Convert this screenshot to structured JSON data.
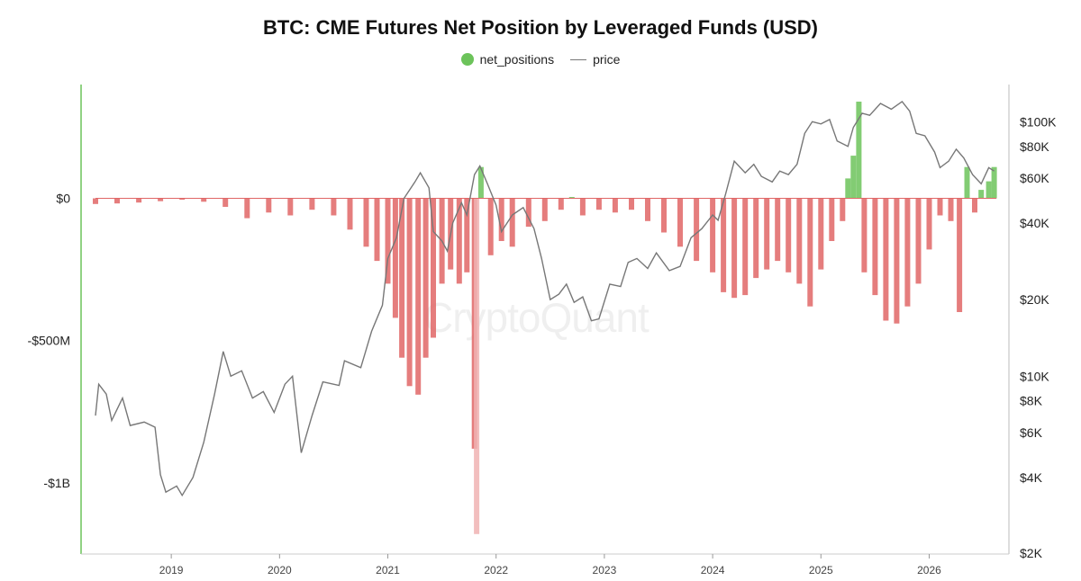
{
  "chart_data": {
    "type": "bar+line",
    "title": "BTC: CME Futures Net Position by Leveraged Funds (USD)",
    "legend": {
      "placement": "top-center",
      "entries": [
        {
          "name": "net_positions",
          "marker": "dot",
          "color": "#6cc35a"
        },
        {
          "name": "price",
          "marker": "line",
          "color": "#777777"
        }
      ]
    },
    "x_axis": {
      "range": [
        "2018-04",
        "2026-08"
      ],
      "ticks": [
        "2019",
        "2020",
        "2021",
        "2022",
        "2023",
        "2024",
        "2025",
        "2026"
      ]
    },
    "y_left": {
      "range": [
        -1250000000,
        400000000
      ],
      "ticks": [
        {
          "value": 0,
          "label": "$0"
        },
        {
          "value": -500000000,
          "label": "-$500M"
        },
        {
          "value": -1000000000,
          "label": "-$1B"
        }
      ]
    },
    "y_right": {
      "scale": "log",
      "range": [
        2000,
        140000
      ],
      "ticks": [
        {
          "value": 100000,
          "label": "$100K"
        },
        {
          "value": 80000,
          "label": "$80K"
        },
        {
          "value": 60000,
          "label": "$60K"
        },
        {
          "value": 40000,
          "label": "$40K"
        },
        {
          "value": 20000,
          "label": "$20K"
        },
        {
          "value": 10000,
          "label": "$10K"
        },
        {
          "value": 8000,
          "label": "$8K"
        },
        {
          "value": 6000,
          "label": "$6K"
        },
        {
          "value": 4000,
          "label": "$4K"
        },
        {
          "value": 2000,
          "label": "$2K"
        }
      ]
    },
    "colors": {
      "positive": "#6cc35a",
      "negative": "#e06666",
      "negative_light": "#f0b3b3",
      "price_line": "#777777",
      "axis": "#6cc35a"
    },
    "net_positions": {
      "unit": "USD",
      "series": [
        {
          "t": 2018.3,
          "v": -20000000
        },
        {
          "t": 2018.5,
          "v": -18000000
        },
        {
          "t": 2018.7,
          "v": -15000000
        },
        {
          "t": 2018.9,
          "v": -10000000
        },
        {
          "t": 2019.1,
          "v": -5000000
        },
        {
          "t": 2019.3,
          "v": -12000000
        },
        {
          "t": 2019.5,
          "v": -30000000
        },
        {
          "t": 2019.7,
          "v": -70000000
        },
        {
          "t": 2019.9,
          "v": -50000000
        },
        {
          "t": 2020.1,
          "v": -60000000
        },
        {
          "t": 2020.3,
          "v": -40000000
        },
        {
          "t": 2020.5,
          "v": -60000000
        },
        {
          "t": 2020.65,
          "v": -110000000
        },
        {
          "t": 2020.8,
          "v": -170000000
        },
        {
          "t": 2020.9,
          "v": -220000000
        },
        {
          "t": 2021.0,
          "v": -300000000
        },
        {
          "t": 2021.07,
          "v": -420000000
        },
        {
          "t": 2021.13,
          "v": -560000000
        },
        {
          "t": 2021.2,
          "v": -660000000
        },
        {
          "t": 2021.28,
          "v": -690000000
        },
        {
          "t": 2021.35,
          "v": -560000000
        },
        {
          "t": 2021.42,
          "v": -490000000
        },
        {
          "t": 2021.5,
          "v": -300000000
        },
        {
          "t": 2021.58,
          "v": -250000000
        },
        {
          "t": 2021.66,
          "v": -300000000
        },
        {
          "t": 2021.73,
          "v": -260000000
        },
        {
          "t": 2021.8,
          "v": -880000000
        },
        {
          "t": 2021.82,
          "v": -1180000000
        },
        {
          "t": 2021.86,
          "v": 110000000
        },
        {
          "t": 2021.95,
          "v": -200000000
        },
        {
          "t": 2022.05,
          "v": -150000000
        },
        {
          "t": 2022.15,
          "v": -170000000
        },
        {
          "t": 2022.3,
          "v": -100000000
        },
        {
          "t": 2022.45,
          "v": -80000000
        },
        {
          "t": 2022.6,
          "v": -40000000
        },
        {
          "t": 2022.7,
          "v": 5000000
        },
        {
          "t": 2022.8,
          "v": -60000000
        },
        {
          "t": 2022.95,
          "v": -40000000
        },
        {
          "t": 2023.1,
          "v": -50000000
        },
        {
          "t": 2023.25,
          "v": -40000000
        },
        {
          "t": 2023.4,
          "v": -80000000
        },
        {
          "t": 2023.55,
          "v": -120000000
        },
        {
          "t": 2023.7,
          "v": -170000000
        },
        {
          "t": 2023.85,
          "v": -220000000
        },
        {
          "t": 2024.0,
          "v": -260000000
        },
        {
          "t": 2024.1,
          "v": -330000000
        },
        {
          "t": 2024.2,
          "v": -350000000
        },
        {
          "t": 2024.3,
          "v": -340000000
        },
        {
          "t": 2024.4,
          "v": -280000000
        },
        {
          "t": 2024.5,
          "v": -250000000
        },
        {
          "t": 2024.6,
          "v": -220000000
        },
        {
          "t": 2024.7,
          "v": -260000000
        },
        {
          "t": 2024.8,
          "v": -300000000
        },
        {
          "t": 2024.9,
          "v": -380000000
        },
        {
          "t": 2025.0,
          "v": -250000000
        },
        {
          "t": 2025.1,
          "v": -150000000
        },
        {
          "t": 2025.2,
          "v": -80000000
        },
        {
          "t": 2025.25,
          "v": 70000000
        },
        {
          "t": 2025.3,
          "v": 150000000
        },
        {
          "t": 2025.35,
          "v": 340000000
        },
        {
          "t": 2025.4,
          "v": -260000000
        },
        {
          "t": 2025.5,
          "v": -340000000
        },
        {
          "t": 2025.6,
          "v": -430000000
        },
        {
          "t": 2025.7,
          "v": -440000000
        },
        {
          "t": 2025.8,
          "v": -380000000
        },
        {
          "t": 2025.9,
          "v": -300000000
        },
        {
          "t": 2026.0,
          "v": -180000000
        },
        {
          "t": 2026.1,
          "v": -60000000
        },
        {
          "t": 2026.2,
          "v": -80000000
        },
        {
          "t": 2026.28,
          "v": -400000000
        },
        {
          "t": 2026.35,
          "v": 110000000
        },
        {
          "t": 2026.42,
          "v": -50000000
        },
        {
          "t": 2026.48,
          "v": 30000000
        },
        {
          "t": 2026.55,
          "v": 60000000
        },
        {
          "t": 2026.6,
          "v": 110000000
        }
      ]
    },
    "price": {
      "unit": "USD",
      "series": [
        {
          "t": 2018.3,
          "v": 7000
        },
        {
          "t": 2018.33,
          "v": 9300
        },
        {
          "t": 2018.4,
          "v": 8500
        },
        {
          "t": 2018.45,
          "v": 6700
        },
        {
          "t": 2018.55,
          "v": 8200
        },
        {
          "t": 2018.62,
          "v": 6400
        },
        {
          "t": 2018.75,
          "v": 6600
        },
        {
          "t": 2018.85,
          "v": 6300
        },
        {
          "t": 2018.9,
          "v": 4100
        },
        {
          "t": 2018.95,
          "v": 3500
        },
        {
          "t": 2019.05,
          "v": 3700
        },
        {
          "t": 2019.1,
          "v": 3400
        },
        {
          "t": 2019.2,
          "v": 4000
        },
        {
          "t": 2019.3,
          "v": 5500
        },
        {
          "t": 2019.4,
          "v": 8500
        },
        {
          "t": 2019.48,
          "v": 12500
        },
        {
          "t": 2019.55,
          "v": 10000
        },
        {
          "t": 2019.65,
          "v": 10500
        },
        {
          "t": 2019.75,
          "v": 8200
        },
        {
          "t": 2019.85,
          "v": 8700
        },
        {
          "t": 2019.95,
          "v": 7200
        },
        {
          "t": 2020.05,
          "v": 9300
        },
        {
          "t": 2020.12,
          "v": 10000
        },
        {
          "t": 2020.2,
          "v": 5000
        },
        {
          "t": 2020.3,
          "v": 7000
        },
        {
          "t": 2020.4,
          "v": 9500
        },
        {
          "t": 2020.55,
          "v": 9200
        },
        {
          "t": 2020.6,
          "v": 11500
        },
        {
          "t": 2020.75,
          "v": 10800
        },
        {
          "t": 2020.85,
          "v": 15000
        },
        {
          "t": 2020.95,
          "v": 19000
        },
        {
          "t": 2021.0,
          "v": 29000
        },
        {
          "t": 2021.08,
          "v": 35000
        },
        {
          "t": 2021.15,
          "v": 50000
        },
        {
          "t": 2021.25,
          "v": 58000
        },
        {
          "t": 2021.3,
          "v": 63000
        },
        {
          "t": 2021.38,
          "v": 55000
        },
        {
          "t": 2021.42,
          "v": 37000
        },
        {
          "t": 2021.5,
          "v": 34000
        },
        {
          "t": 2021.55,
          "v": 31000
        },
        {
          "t": 2021.6,
          "v": 40000
        },
        {
          "t": 2021.68,
          "v": 48000
        },
        {
          "t": 2021.73,
          "v": 43000
        },
        {
          "t": 2021.8,
          "v": 62000
        },
        {
          "t": 2021.85,
          "v": 67000
        },
        {
          "t": 2021.92,
          "v": 57000
        },
        {
          "t": 2022.0,
          "v": 47000
        },
        {
          "t": 2022.05,
          "v": 37000
        },
        {
          "t": 2022.15,
          "v": 43000
        },
        {
          "t": 2022.25,
          "v": 46000
        },
        {
          "t": 2022.35,
          "v": 38000
        },
        {
          "t": 2022.42,
          "v": 29000
        },
        {
          "t": 2022.5,
          "v": 20000
        },
        {
          "t": 2022.58,
          "v": 21000
        },
        {
          "t": 2022.65,
          "v": 23000
        },
        {
          "t": 2022.72,
          "v": 19500
        },
        {
          "t": 2022.8,
          "v": 20500
        },
        {
          "t": 2022.88,
          "v": 16500
        },
        {
          "t": 2022.95,
          "v": 16800
        },
        {
          "t": 2023.05,
          "v": 23000
        },
        {
          "t": 2023.15,
          "v": 22500
        },
        {
          "t": 2023.22,
          "v": 28000
        },
        {
          "t": 2023.3,
          "v": 29000
        },
        {
          "t": 2023.4,
          "v": 26500
        },
        {
          "t": 2023.48,
          "v": 30500
        },
        {
          "t": 2023.6,
          "v": 26000
        },
        {
          "t": 2023.7,
          "v": 27000
        },
        {
          "t": 2023.8,
          "v": 35000
        },
        {
          "t": 2023.9,
          "v": 38000
        },
        {
          "t": 2024.0,
          "v": 43000
        },
        {
          "t": 2024.05,
          "v": 41000
        },
        {
          "t": 2024.12,
          "v": 52000
        },
        {
          "t": 2024.2,
          "v": 70000
        },
        {
          "t": 2024.3,
          "v": 63000
        },
        {
          "t": 2024.38,
          "v": 68000
        },
        {
          "t": 2024.45,
          "v": 61000
        },
        {
          "t": 2024.55,
          "v": 58000
        },
        {
          "t": 2024.62,
          "v": 64000
        },
        {
          "t": 2024.7,
          "v": 62000
        },
        {
          "t": 2024.78,
          "v": 68000
        },
        {
          "t": 2024.85,
          "v": 90000
        },
        {
          "t": 2024.92,
          "v": 100000
        },
        {
          "t": 2025.0,
          "v": 98000
        },
        {
          "t": 2025.08,
          "v": 102000
        },
        {
          "t": 2025.15,
          "v": 84000
        },
        {
          "t": 2025.25,
          "v": 80000
        },
        {
          "t": 2025.3,
          "v": 95000
        },
        {
          "t": 2025.38,
          "v": 108000
        },
        {
          "t": 2025.45,
          "v": 106000
        },
        {
          "t": 2025.55,
          "v": 118000
        },
        {
          "t": 2025.65,
          "v": 112000
        },
        {
          "t": 2025.75,
          "v": 120000
        },
        {
          "t": 2025.82,
          "v": 110000
        },
        {
          "t": 2025.88,
          "v": 90000
        },
        {
          "t": 2025.96,
          "v": 88000
        },
        {
          "t": 2026.05,
          "v": 76000
        },
        {
          "t": 2026.1,
          "v": 66000
        },
        {
          "t": 2026.18,
          "v": 70000
        },
        {
          "t": 2026.25,
          "v": 78000
        },
        {
          "t": 2026.32,
          "v": 72000
        },
        {
          "t": 2026.4,
          "v": 62000
        },
        {
          "t": 2026.48,
          "v": 57000
        },
        {
          "t": 2026.55,
          "v": 66000
        },
        {
          "t": 2026.6,
          "v": 64000
        }
      ]
    },
    "watermark": "CryptoQuant"
  }
}
